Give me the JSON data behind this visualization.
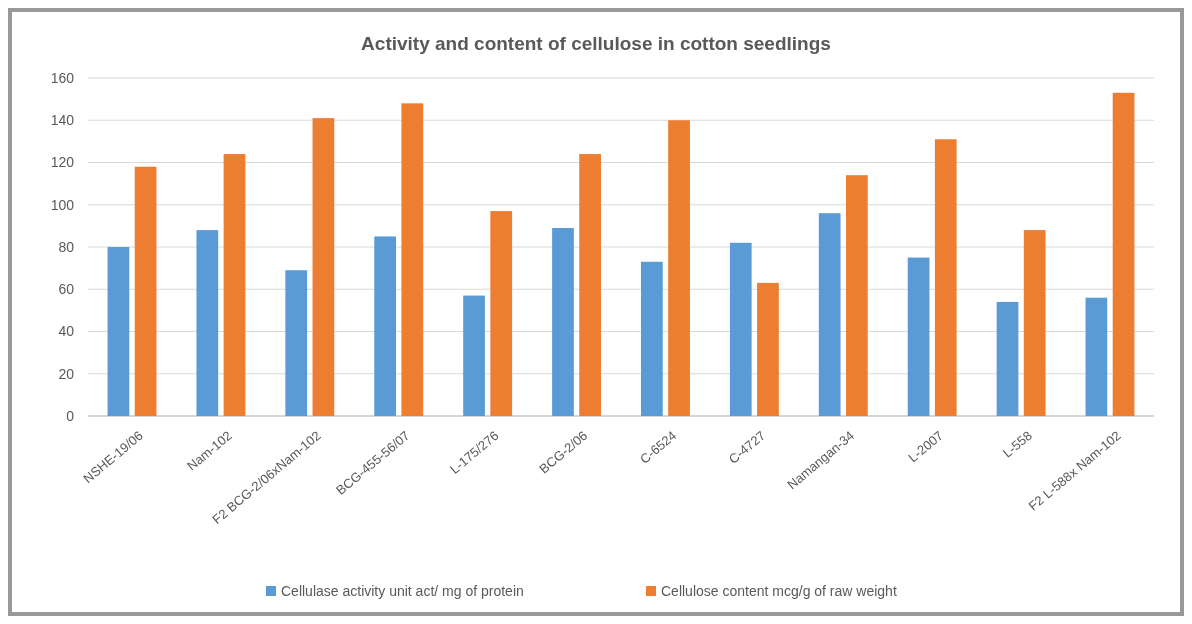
{
  "chart_data": {
    "type": "bar",
    "title": "Activity and content of cellulose in cotton seedlings",
    "categories": [
      "NSHE-19/06",
      "Nam-102",
      "F2 BCG-2/06xNam-102",
      "BCG-455-56/07",
      "L-175/276",
      "BCG-2/06",
      "C-6524",
      "C-4727",
      "Namangan-34",
      "L-2007",
      "L-558",
      "F2 L-588x Nam-102"
    ],
    "series": [
      {
        "name": "Cellulase activity unit act/ mg of protein",
        "color": "#5b9bd5",
        "values": [
          80,
          88,
          69,
          85,
          57,
          89,
          73,
          82,
          96,
          75,
          54,
          56
        ]
      },
      {
        "name": "Cellulose content mcg/g of raw weight",
        "color": "#ed7d31",
        "values": [
          118,
          124,
          141,
          148,
          97,
          124,
          140,
          63,
          114,
          131,
          88,
          153
        ]
      }
    ],
    "ylim": [
      0,
      160
    ],
    "yticks": [
      0,
      20,
      40,
      60,
      80,
      100,
      120,
      140,
      160
    ],
    "grid": "y",
    "legend": "bottom"
  }
}
